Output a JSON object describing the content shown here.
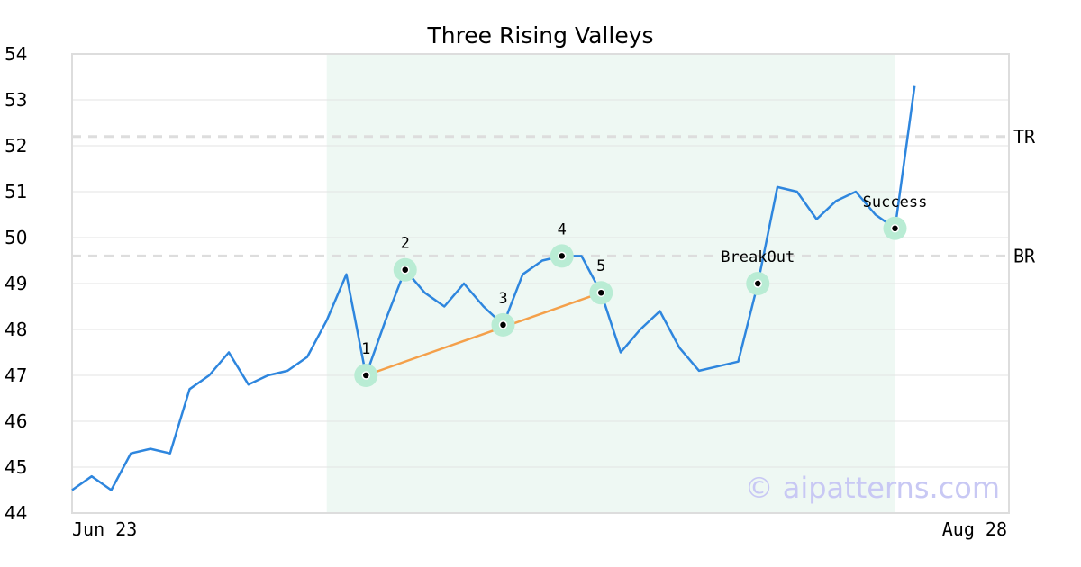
{
  "chart_data": {
    "type": "line",
    "title": "Three Rising Valleys",
    "xlabel": "",
    "ylabel": "",
    "x_tick_labels": [
      "Jun 23",
      "Aug 28"
    ],
    "ylim": [
      44,
      54
    ],
    "yticks": [
      44,
      45,
      46,
      47,
      48,
      49,
      50,
      51,
      52,
      53,
      54
    ],
    "grid": "horizontal",
    "colors": {
      "line": "#2e86de",
      "trendline": "#f4a04a",
      "highlight": "#eef8f3",
      "marker_ring": "#b9ecd4",
      "dashed": "#dddddd",
      "frame": "#dddddd",
      "watermark": "#c8c8f4"
    },
    "series": [
      {
        "values": [
          44.5,
          44.8,
          44.5,
          45.3,
          45.4,
          45.3,
          46.7,
          47.0,
          47.5,
          46.8,
          47.0,
          47.1,
          47.4,
          48.2,
          49.2,
          47.0,
          48.2,
          49.3,
          48.8,
          48.5,
          49.0,
          48.5,
          48.1,
          49.2,
          49.5,
          49.6,
          49.6,
          48.8,
          47.5,
          48.0,
          48.4,
          47.6,
          47.1,
          47.2,
          47.3,
          49.0,
          51.1,
          51.0,
          50.4,
          50.8,
          51.0,
          50.5,
          50.2,
          53.3
        ]
      }
    ],
    "highlight_range": {
      "start_index": 13,
      "end_index": 42
    },
    "horizontal_lines": [
      {
        "label": "TR",
        "value": 52.2
      },
      {
        "label": "BR",
        "value": 49.6
      }
    ],
    "pattern_points": [
      {
        "label": "1",
        "index": 15,
        "value": 47.0
      },
      {
        "label": "2",
        "index": 17,
        "value": 49.3
      },
      {
        "label": "3",
        "index": 22,
        "value": 48.1
      },
      {
        "label": "4",
        "index": 25,
        "value": 49.6
      },
      {
        "label": "5",
        "index": 27,
        "value": 48.8
      },
      {
        "label": "BreakOut",
        "index": 35,
        "value": 49.0
      },
      {
        "label": "Success",
        "index": 42,
        "value": 50.2
      }
    ],
    "trendline": {
      "from_index": 15,
      "from_value": 47.0,
      "to_index": 27,
      "to_value": 48.8
    },
    "watermark": "© aipatterns.com"
  }
}
